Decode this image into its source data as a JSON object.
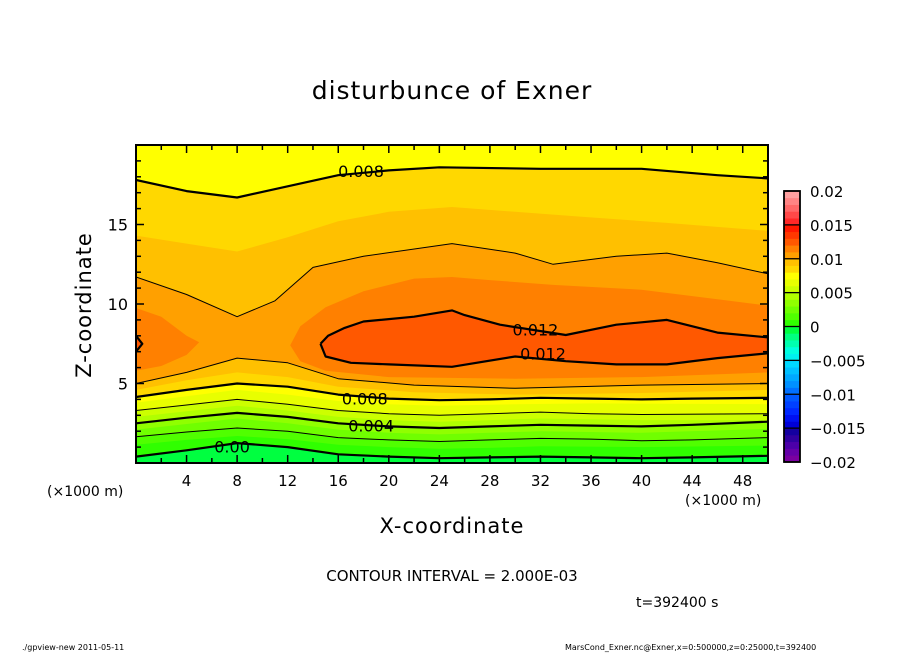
{
  "chart_data": {
    "type": "contour",
    "title": "disturbunce of Exner",
    "xlabel": "X-coordinate",
    "ylabel": "Z-coordinate",
    "x_unit_label_left": "(×1000 m)",
    "x_unit_label_right": "(×1000 m)",
    "xlim": [
      0,
      50
    ],
    "ylim": [
      0,
      20
    ],
    "x_ticks": [
      4,
      8,
      12,
      16,
      20,
      24,
      28,
      32,
      36,
      40,
      44,
      48
    ],
    "y_ticks": [
      5,
      10,
      15
    ],
    "contour_interval_text": "CONTOUR INTERVAL = 2.000E-03",
    "time_text": "t=392400 s",
    "colorbar": {
      "range": [
        -0.02,
        0.02
      ],
      "tick_values": [
        0.02,
        0.015,
        0.01,
        0.005,
        0,
        -0.005,
        -0.01,
        -0.015,
        -0.02
      ],
      "tick_labels": [
        "0.02",
        "0.015",
        "0.01",
        "0.005",
        "0",
        "−0.005",
        "−0.01",
        "−0.015",
        "−0.02"
      ],
      "colors": [
        "#7a00a0",
        "#6400a8",
        "#4c00a8",
        "#3000a0",
        "#1400a0",
        "#0000d8",
        "#0010f0",
        "#0028ff",
        "#0040ff",
        "#0058ff",
        "#0070ff",
        "#0090ff",
        "#00a8ff",
        "#00c0ff",
        "#00d8ff",
        "#00f0f0",
        "#00ffe0",
        "#00ffb0",
        "#00ff80",
        "#00ff40",
        "#30ff00",
        "#50ff00",
        "#70ff00",
        "#90ff00",
        "#b0ff00",
        "#ccff00",
        "#e8ff00",
        "#ffff00",
        "#ffd800",
        "#ffc000",
        "#ffa000",
        "#ff8000",
        "#ff5800",
        "#ff3800",
        "#ff1800",
        "#ff2828",
        "#ff4848",
        "#ff6868",
        "#ff8484",
        "#ffa0a0"
      ]
    },
    "base_color": "#00ff40",
    "curves": {
      "l000": [
        [
          0,
          0.4
        ],
        [
          4,
          0.8
        ],
        [
          8,
          1.25
        ],
        [
          12,
          1.0
        ],
        [
          16,
          0.55
        ],
        [
          20,
          0.4
        ],
        [
          24,
          0.3
        ],
        [
          28,
          0.35
        ],
        [
          32,
          0.4
        ],
        [
          36,
          0.35
        ],
        [
          40,
          0.3
        ],
        [
          44,
          0.35
        ],
        [
          50,
          0.45
        ]
      ],
      "l001": [
        [
          0,
          1.15
        ],
        [
          4,
          1.45
        ],
        [
          8,
          1.7
        ],
        [
          12,
          1.5
        ],
        [
          16,
          1.15
        ],
        [
          20,
          1.0
        ],
        [
          24,
          0.9
        ],
        [
          28,
          0.95
        ],
        [
          32,
          1.05
        ],
        [
          40,
          1.0
        ],
        [
          50,
          1.1
        ]
      ],
      "l002": [
        [
          0,
          1.65
        ],
        [
          4,
          1.95
        ],
        [
          8,
          2.2
        ],
        [
          12,
          2.0
        ],
        [
          16,
          1.6
        ],
        [
          20,
          1.45
        ],
        [
          24,
          1.35
        ],
        [
          28,
          1.45
        ],
        [
          32,
          1.55
        ],
        [
          36,
          1.5
        ],
        [
          40,
          1.4
        ],
        [
          44,
          1.45
        ],
        [
          50,
          1.6
        ]
      ],
      "l003": [
        [
          0,
          2.1
        ],
        [
          4,
          2.45
        ],
        [
          8,
          2.8
        ],
        [
          12,
          2.5
        ],
        [
          16,
          2.1
        ],
        [
          20,
          1.9
        ],
        [
          24,
          1.8
        ],
        [
          28,
          1.9
        ],
        [
          32,
          2.0
        ],
        [
          40,
          1.9
        ],
        [
          50,
          2.15
        ]
      ],
      "l004": [
        [
          0,
          2.5
        ],
        [
          4,
          2.85
        ],
        [
          8,
          3.15
        ],
        [
          12,
          2.9
        ],
        [
          16,
          2.5
        ],
        [
          20,
          2.3
        ],
        [
          24,
          2.2
        ],
        [
          28,
          2.3
        ],
        [
          32,
          2.4
        ],
        [
          36,
          2.35
        ],
        [
          40,
          2.3
        ],
        [
          44,
          2.4
        ],
        [
          50,
          2.6
        ]
      ],
      "l005": [
        [
          0,
          2.9
        ],
        [
          4,
          3.25
        ],
        [
          8,
          3.6
        ],
        [
          12,
          3.3
        ],
        [
          16,
          2.9
        ],
        [
          20,
          2.7
        ],
        [
          24,
          2.6
        ],
        [
          28,
          2.7
        ],
        [
          32,
          2.8
        ],
        [
          40,
          2.7
        ],
        [
          50,
          2.7
        ]
      ],
      "l006": [
        [
          0,
          3.3
        ],
        [
          4,
          3.65
        ],
        [
          8,
          4.0
        ],
        [
          12,
          3.7
        ],
        [
          16,
          3.3
        ],
        [
          20,
          3.1
        ],
        [
          24,
          3.0
        ],
        [
          28,
          3.1
        ],
        [
          32,
          3.2
        ],
        [
          36,
          3.1
        ],
        [
          40,
          3.05
        ],
        [
          50,
          3.1
        ]
      ],
      "l007": [
        [
          0,
          3.8
        ],
        [
          4,
          4.2
        ],
        [
          8,
          4.6
        ],
        [
          12,
          4.3
        ],
        [
          16,
          3.9
        ],
        [
          20,
          3.7
        ],
        [
          24,
          3.6
        ],
        [
          30,
          3.7
        ],
        [
          36,
          3.75
        ],
        [
          50,
          3.7
        ]
      ],
      "l008": [
        [
          0,
          4.15
        ],
        [
          4,
          4.6
        ],
        [
          8,
          5.0
        ],
        [
          12,
          4.8
        ],
        [
          16,
          4.3
        ],
        [
          20,
          4.05
        ],
        [
          24,
          3.95
        ],
        [
          28,
          4.0
        ],
        [
          32,
          4.1
        ],
        [
          36,
          4.05
        ],
        [
          40,
          4.0
        ],
        [
          44,
          4.05
        ],
        [
          50,
          4.1
        ]
      ],
      "l009": [
        [
          0,
          4.6
        ],
        [
          4,
          5.2
        ],
        [
          8,
          5.7
        ],
        [
          12,
          5.4
        ],
        [
          16,
          4.8
        ],
        [
          22,
          4.45
        ],
        [
          30,
          4.3
        ],
        [
          40,
          4.4
        ],
        [
          50,
          4.6
        ]
      ],
      "l010": [
        [
          0,
          5.0
        ],
        [
          4,
          5.7
        ],
        [
          8,
          6.6
        ],
        [
          12,
          6.3
        ],
        [
          16,
          5.3
        ],
        [
          22,
          4.9
        ],
        [
          30,
          4.7
        ],
        [
          40,
          4.9
        ],
        [
          50,
          5.0
        ]
      ],
      "u010": [
        [
          0,
          11.7
        ],
        [
          4,
          10.6
        ],
        [
          8,
          9.2
        ],
        [
          11,
          10.2
        ],
        [
          14,
          12.3
        ],
        [
          18,
          13.0
        ],
        [
          25,
          13.8
        ],
        [
          30,
          13.2
        ],
        [
          33,
          12.5
        ],
        [
          38,
          13.0
        ],
        [
          42,
          13.2
        ],
        [
          46,
          12.6
        ],
        [
          50,
          11.9
        ]
      ],
      "u009": [
        [
          0,
          14.3
        ],
        [
          4,
          13.8
        ],
        [
          8,
          13.3
        ],
        [
          12,
          14.2
        ],
        [
          16,
          15.2
        ],
        [
          20,
          15.8
        ],
        [
          25,
          16.1
        ],
        [
          30,
          15.8
        ],
        [
          35,
          15.5
        ],
        [
          42,
          15.1
        ],
        [
          50,
          14.6
        ]
      ],
      "u008": [
        [
          0,
          17.8
        ],
        [
          4,
          17.1
        ],
        [
          8,
          16.7
        ],
        [
          12,
          17.4
        ],
        [
          16,
          18.1
        ],
        [
          20,
          18.4
        ],
        [
          24,
          18.6
        ],
        [
          32,
          18.5
        ],
        [
          40,
          18.5
        ],
        [
          46,
          18.1
        ],
        [
          50,
          17.9
        ]
      ],
      "b011l": [
        [
          0,
          9.75
        ],
        [
          2,
          9.2
        ],
        [
          4,
          8.0
        ],
        [
          5,
          7.6
        ],
        [
          4,
          6.8
        ],
        [
          2,
          6.1
        ],
        [
          0,
          5.8
        ]
      ],
      "b011r": [
        [
          50,
          9.9
        ],
        [
          46,
          10.3
        ],
        [
          40,
          10.9
        ],
        [
          33,
          11.2
        ],
        [
          28,
          11.5
        ],
        [
          25,
          11.7
        ],
        [
          22,
          11.6
        ],
        [
          18,
          10.8
        ],
        [
          15,
          9.8
        ],
        [
          13,
          8.6
        ],
        [
          12.2,
          7.4
        ],
        [
          13,
          6.4
        ],
        [
          15,
          5.8
        ],
        [
          20,
          5.4
        ],
        [
          30,
          5.3
        ],
        [
          40,
          5.4
        ],
        [
          50,
          5.7
        ]
      ],
      "b012": [
        [
          14.6,
          7.5
        ],
        [
          15.2,
          8.0
        ],
        [
          16.5,
          8.5
        ],
        [
          18,
          8.9
        ],
        [
          22,
          9.2
        ],
        [
          25,
          9.6
        ],
        [
          26,
          9.3
        ],
        [
          28.8,
          8.7
        ],
        [
          34,
          8.05
        ],
        [
          38,
          8.7
        ],
        [
          42,
          9.0
        ],
        [
          46,
          8.2
        ],
        [
          50,
          7.9
        ],
        [
          50,
          6.9
        ],
        [
          46,
          6.6
        ],
        [
          42,
          6.2
        ],
        [
          38,
          6.2
        ],
        [
          34,
          6.4
        ],
        [
          30,
          6.7
        ],
        [
          25,
          6.05
        ],
        [
          20,
          6.2
        ],
        [
          17,
          6.3
        ],
        [
          15,
          6.7
        ],
        [
          14.6,
          7.5
        ]
      ],
      "b012l": [
        [
          0,
          7.0
        ],
        [
          0.5,
          7.5
        ],
        [
          0,
          8.0
        ]
      ]
    },
    "fills": [
      {
        "level": 0.0,
        "color": "#30ff00",
        "lower": "l000",
        "upper": "top"
      },
      {
        "level": 0.001,
        "color": "#50ff00",
        "lower": "l001",
        "upper": "top"
      },
      {
        "level": 0.002,
        "color": "#70ff00",
        "lower": "l002",
        "upper": "top"
      },
      {
        "level": 0.003,
        "color": "#90ff00",
        "lower": "l003",
        "upper": "top"
      },
      {
        "level": 0.004,
        "color": "#b0ff00",
        "lower": "l004",
        "upper": "top"
      },
      {
        "level": 0.005,
        "color": "#ccff00",
        "lower": "l005",
        "upper": "top"
      },
      {
        "level": 0.006,
        "color": "#e8ff00",
        "lower": "l006",
        "upper": "top"
      },
      {
        "level": 0.007,
        "color": "#ffff00",
        "lower": "l007",
        "upper": "top"
      },
      {
        "level": 0.008,
        "color": "#ffd800",
        "lower": "l008",
        "upper": "u008"
      },
      {
        "level": 0.009,
        "color": "#ffc000",
        "lower": "l009",
        "upper": "u009"
      },
      {
        "level": 0.01,
        "color": "#ffa000",
        "lower": "l010",
        "upper": "u010"
      },
      {
        "level": 0.011,
        "color": "#ff8000",
        "closed": "b011l"
      },
      {
        "level": 0.011,
        "color": "#ff8000",
        "closed": "b011r"
      },
      {
        "level": 0.012,
        "color": "#ff5800",
        "closed": "b012"
      },
      {
        "level": 0.012,
        "color": "#ff5800",
        "closed": "b012l"
      }
    ],
    "contour_lines": [
      {
        "level": 0.0,
        "curve": "l000",
        "style": "thick"
      },
      {
        "level": 0.002,
        "curve": "l002",
        "style": "thin"
      },
      {
        "level": 0.004,
        "curve": "l004",
        "style": "thick"
      },
      {
        "level": 0.006,
        "curve": "l006",
        "style": "thin"
      },
      {
        "level": 0.008,
        "curve": "l008",
        "style": "thick"
      },
      {
        "level": 0.01,
        "curve": "l010",
        "style": "thin"
      },
      {
        "level": 0.01,
        "curve": "u010",
        "style": "thin"
      },
      {
        "level": 0.008,
        "curve": "u008",
        "style": "thick"
      },
      {
        "level": 0.012,
        "curve": "b012",
        "style": "thick"
      },
      {
        "level": 0.012,
        "curve": "b012l",
        "style": "thick"
      }
    ],
    "contour_labels": [
      {
        "text": "0.00",
        "x": 7.6,
        "z": 1.05
      },
      {
        "text": "0.004",
        "x": 18.6,
        "z": 2.35
      },
      {
        "text": "0.008",
        "x": 18.1,
        "z": 4.05
      },
      {
        "text": "0.008",
        "x": 17.8,
        "z": 18.35
      },
      {
        "text": "0.012",
        "x": 31.6,
        "z": 8.4
      },
      {
        "text": "0.012",
        "x": 32.2,
        "z": 6.9
      }
    ]
  },
  "footer": {
    "left": "./gpview-new   2011-05-11",
    "right": "MarsCond_Exner.nc@Exner,x=0:500000,z=0:25000,t=392400"
  }
}
